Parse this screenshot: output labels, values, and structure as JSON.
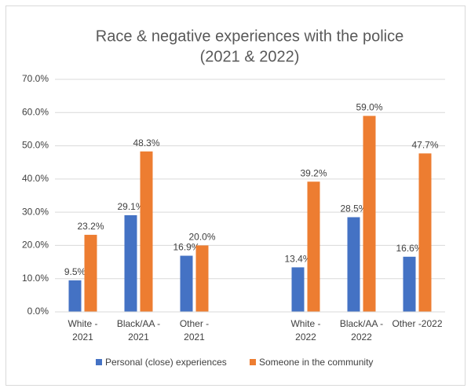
{
  "chart_data": {
    "type": "bar",
    "title": "Race & negative experiences with the police",
    "subtitle": "(2021 & 2022)",
    "categories": [
      "White - 2021",
      "Black/AA - 2021",
      "Other - 2021",
      null,
      "White - 2022",
      "Black/AA - 2022",
      "Other -2022"
    ],
    "series": [
      {
        "name": "Personal (close) experiences",
        "color": "#4472c4",
        "values": [
          9.5,
          29.1,
          16.9,
          null,
          13.4,
          28.5,
          16.6
        ],
        "value_labels": [
          "9.5%",
          "29.1%",
          "16.9%",
          null,
          "13.4%",
          "28.5%",
          "16.6%"
        ]
      },
      {
        "name": "Someone in the community",
        "color": "#ed7d31",
        "values": [
          23.2,
          48.3,
          20.0,
          null,
          39.2,
          59.0,
          47.7
        ],
        "value_labels": [
          "23.2%",
          "48.3%",
          "20.0%",
          null,
          "39.2%",
          "59.0%",
          "47.7%"
        ]
      }
    ],
    "ylim": [
      0,
      70
    ],
    "yticks": [
      {
        "value": 0,
        "label": "0.0%"
      },
      {
        "value": 10,
        "label": "10.0%"
      },
      {
        "value": 20,
        "label": "20.0%"
      },
      {
        "value": 30,
        "label": "30.0%"
      },
      {
        "value": 40,
        "label": "40.0%"
      },
      {
        "value": 50,
        "label": "50.0%"
      },
      {
        "value": 60,
        "label": "60.0%"
      },
      {
        "value": 70,
        "label": "70.0%"
      }
    ],
    "grid": true,
    "legend": "bottom"
  }
}
